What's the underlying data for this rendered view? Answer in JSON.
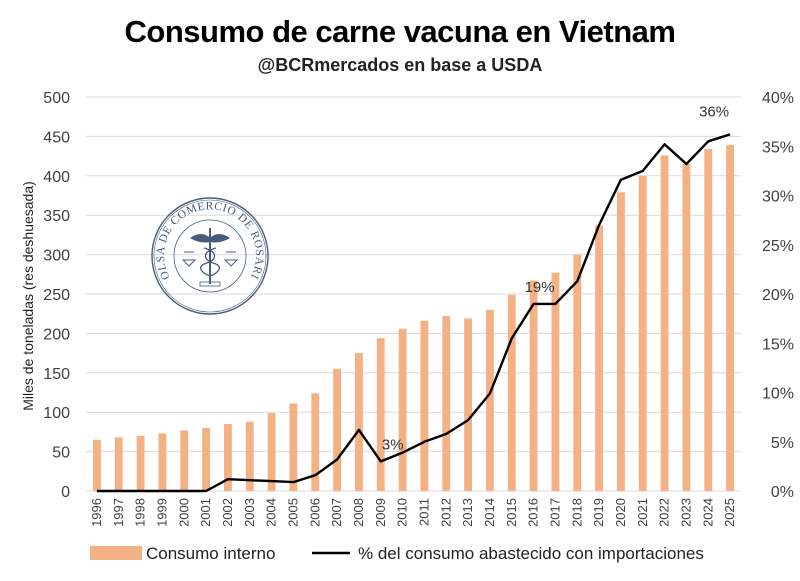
{
  "chart_data": {
    "type": "bar",
    "title": "Consumo de carne vacuna en Vietnam",
    "subtitle": "@BCRmercados en base a USDA",
    "ylabel": "Miles de toneladas (res deshuesada)",
    "ylim": [
      0,
      500
    ],
    "y_ticks": [
      "0",
      "50",
      "100",
      "150",
      "200",
      "250",
      "300",
      "350",
      "400",
      "450",
      "500"
    ],
    "y2lim": [
      0,
      40
    ],
    "y2_ticks": [
      "0%",
      "5%",
      "10%",
      "15%",
      "20%",
      "25%",
      "30%",
      "35%",
      "40%"
    ],
    "categories": [
      "1996",
      "1997",
      "1998",
      "1999",
      "2000",
      "2001",
      "2002",
      "2003",
      "2004",
      "2005",
      "2006",
      "2007",
      "2008",
      "2009",
      "2010",
      "2011",
      "2012",
      "2013",
      "2014",
      "2015",
      "2016",
      "2017",
      "2018",
      "2019",
      "2020",
      "2021",
      "2022",
      "2023",
      "2024",
      "2025"
    ],
    "series": [
      {
        "name": "Consumo interno",
        "type": "bar",
        "axis": "left",
        "color": "#f4b183",
        "values": [
          65,
          68,
          70,
          73,
          77,
          80,
          85,
          88,
          99,
          111,
          124,
          155,
          175,
          194,
          206,
          216,
          222,
          219,
          230,
          249,
          267,
          277,
          300,
          337,
          379,
          400,
          426,
          415,
          434,
          439
        ]
      },
      {
        "name": "% del consumo abastecido con importaciones",
        "type": "line",
        "axis": "right",
        "color": "#000000",
        "values": [
          0,
          0,
          0,
          0,
          0,
          0,
          1.2,
          1.1,
          1.0,
          0.9,
          1.6,
          3.2,
          6.2,
          3.0,
          3.9,
          5.0,
          5.8,
          7.2,
          9.9,
          15.5,
          19.0,
          19.0,
          21.3,
          27.0,
          31.6,
          32.5,
          35.2,
          33.2,
          35.5,
          36.2
        ]
      }
    ],
    "annotations": [
      {
        "label": "3%",
        "category": "2009"
      },
      {
        "label": "19%",
        "category": "2016"
      },
      {
        "label": "36%",
        "category": "2025"
      }
    ],
    "legend_position": "bottom",
    "grid": true
  },
  "watermark": {
    "name": "Bolsa de Comercio de Rosario seal",
    "text": "BOLSA DE COMERCIO DE ROSARIO"
  }
}
